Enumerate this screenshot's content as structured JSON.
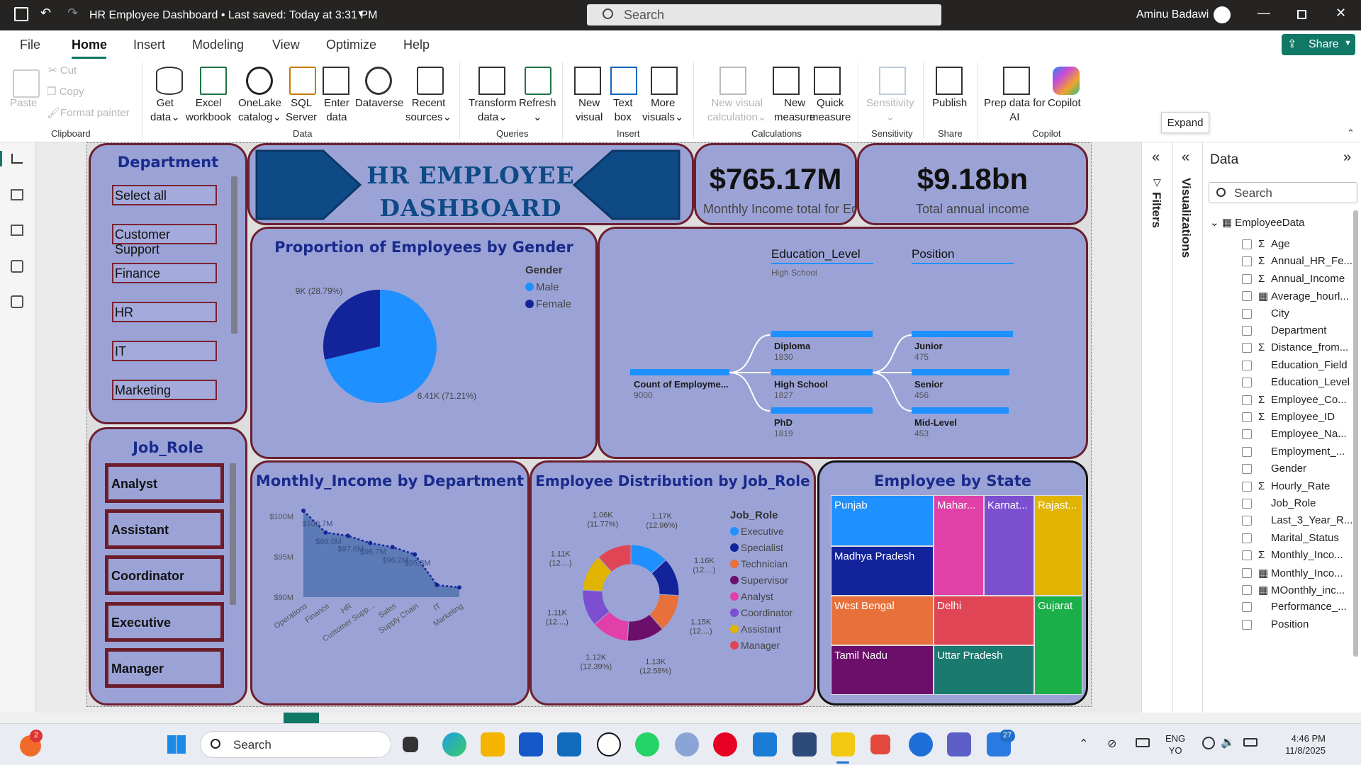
{
  "titlebar": {
    "title": "HR Employee Dashboard • Last saved: Today at 3:31 PM",
    "search_placeholder": "Search",
    "user": "Aminu Badawi"
  },
  "menu": [
    "File",
    "Home",
    "Insert",
    "Modeling",
    "View",
    "Optimize",
    "Help"
  ],
  "share_label": "Share",
  "ribbon": {
    "clipboard": {
      "paste": "Paste",
      "cut": "Cut",
      "copy": "Copy",
      "format_painter": "Format painter",
      "group": "Clipboard"
    },
    "data": {
      "get_data": "Get",
      "get_data2": "data",
      "excel": "Excel",
      "excel2": "workbook",
      "onelake": "OneLake",
      "onelake2": "catalog",
      "sql": "SQL",
      "sql2": "Server",
      "enter": "Enter",
      "enter2": "data",
      "dataverse": "Dataverse",
      "recent": "Recent",
      "recent2": "sources",
      "group": "Data"
    },
    "queries": {
      "transform": "Transform",
      "transform2": "data",
      "refresh": "Refresh",
      "group": "Queries"
    },
    "insert": {
      "new_visual": "New",
      "new_visual2": "visual",
      "text_box": "Text",
      "text_box2": "box",
      "more": "More",
      "more2": "visuals",
      "group": "Insert"
    },
    "calc": {
      "nvc": "New visual",
      "nvc2": "calculation",
      "nm": "New",
      "nm2": "measure",
      "qm": "Quick",
      "qm2": "measure",
      "group": "Calculations"
    },
    "sensitivity": {
      "label": "Sensitivity",
      "group": "Sensitivity"
    },
    "share": {
      "publish": "Publish",
      "group": "Share"
    },
    "copilot": {
      "prep": "Prep data for",
      "prep2": "AI",
      "copilot": "Copilot",
      "group": "Copilot"
    }
  },
  "tooltip": "Expand",
  "dashboard": {
    "title_line1": "HR EMPLOYEE",
    "title_line2": "DASHBOARD",
    "dept_slicer": {
      "title": "Department",
      "items": [
        "Select all",
        "Customer Support",
        "Finance",
        "HR",
        "IT",
        "Marketing"
      ]
    },
    "job_slicer": {
      "title": "Job_Role",
      "items": [
        "Analyst",
        "Assistant",
        "Coordinator",
        "Executive",
        "Manager"
      ]
    },
    "kpi1": {
      "value": "$765.17M",
      "label": "Monthly Income total for Ed..."
    },
    "kpi2": {
      "value": "$9.18bn",
      "label": "Total annual income"
    },
    "decomp": {
      "col1": "Education_Level",
      "col1_sub": "High School",
      "col2": "Position",
      "root": {
        "name": "Count of Employme...",
        "value": "9000"
      },
      "edu": [
        {
          "name": "Diploma",
          "value": "1830"
        },
        {
          "name": "High School",
          "value": "1827"
        },
        {
          "name": "PhD",
          "value": "1819"
        }
      ],
      "pos": [
        {
          "name": "Junior",
          "value": "475"
        },
        {
          "name": "Senior",
          "value": "456"
        },
        {
          "name": "Mid-Level",
          "value": "453"
        }
      ]
    },
    "treemap": {
      "title": "Employee by State",
      "cells": [
        "Punjab",
        "Mahar...",
        "Karnat...",
        "Rajast...",
        "Madhya Pradesh",
        "West Bengal",
        "Delhi",
        "Gujarat",
        "Tamil Nadu",
        "Uttar Pradesh"
      ]
    }
  },
  "chart_data": [
    {
      "type": "pie",
      "title": "Proportion of Employees by Gender",
      "legend_title": "Gender",
      "legend_position": "top-right",
      "series": [
        {
          "name": "Male",
          "value": 6410,
          "label": "6.41K (71.21%)",
          "color": "#1e90ff"
        },
        {
          "name": "Female",
          "value": 2590,
          "label": "2.59K (28.79%)",
          "color": "#13239a"
        }
      ]
    },
    {
      "type": "area",
      "title": "Monthly_Income by Department",
      "ylim": [
        90,
        100
      ],
      "y_ticks": [
        "$90M",
        "$95M",
        "$100M"
      ],
      "categories": [
        "Operations",
        "Finance",
        "HR",
        "Customer Supp...",
        "Sales",
        "Supply Chain",
        "IT",
        "Marketing"
      ],
      "values": [
        100.7,
        98.0,
        97.6,
        96.7,
        96.2,
        95.3,
        91.5,
        91.2
      ],
      "data_labels": [
        "$100.7M",
        "$98.0M",
        "$97.6M",
        "$96.7M",
        "$96.2M",
        "$95.3M",
        "",
        ""
      ]
    },
    {
      "type": "pie",
      "subtype": "donut",
      "title": "Employee Distribution by Job_Role",
      "legend_title": "Job_Role",
      "legend_position": "right",
      "series": [
        {
          "name": "Executive",
          "value": 1170,
          "label": "1.17K (12.96%)",
          "color": "#1e90ff"
        },
        {
          "name": "Specialist",
          "value": 1160,
          "label": "1.16K (12....)",
          "color": "#13239a"
        },
        {
          "name": "Technician",
          "value": 1150,
          "label": "1.15K (12....)",
          "color": "#e8703a"
        },
        {
          "name": "Supervisor",
          "value": 1130,
          "label": "1.13K (12.58%)",
          "color": "#6b0f6b"
        },
        {
          "name": "Analyst",
          "value": 1120,
          "label": "1.12K (12.39%)",
          "color": "#e040a8"
        },
        {
          "name": "Coordinator",
          "value": 1110,
          "label": "1.11K (12....)",
          "color": "#7b4fd0"
        },
        {
          "name": "Assistant",
          "value": 1110,
          "label": "1.11K (12....)",
          "color": "#e0b400"
        },
        {
          "name": "Manager",
          "value": 1060,
          "label": "1.06K (11.77%)",
          "color": "#e04555"
        }
      ]
    }
  ],
  "side": {
    "filters": "Filters",
    "visualizations": "Visualizations",
    "data": "Data",
    "search": "Search",
    "table": "EmployeeData",
    "fields": [
      {
        "n": "Age",
        "s": true
      },
      {
        "n": "Annual_HR_Fe...",
        "s": true
      },
      {
        "n": "Annual_Income",
        "s": true
      },
      {
        "n": "Average_hourl...",
        "c": true
      },
      {
        "n": "City"
      },
      {
        "n": "Department"
      },
      {
        "n": "Distance_from...",
        "s": true
      },
      {
        "n": "Education_Field"
      },
      {
        "n": "Education_Level"
      },
      {
        "n": "Employee_Co...",
        "s": true
      },
      {
        "n": "Employee_ID",
        "s": true
      },
      {
        "n": "Employee_Na..."
      },
      {
        "n": "Employment_..."
      },
      {
        "n": "Gender"
      },
      {
        "n": "Hourly_Rate",
        "s": true
      },
      {
        "n": "Job_Role"
      },
      {
        "n": "Last_3_Year_R..."
      },
      {
        "n": "Marital_Status"
      },
      {
        "n": "Monthly_Inco...",
        "s": true
      },
      {
        "n": "Monthly_Inco...",
        "c": true
      },
      {
        "n": "MOonthly_inc...",
        "c": true
      },
      {
        "n": "Performance_..."
      },
      {
        "n": "Position"
      }
    ]
  },
  "taskbar": {
    "search": "Search",
    "lang1": "ENG",
    "lang2": "YO",
    "time": "4:46 PM",
    "date": "11/8/2025",
    "badge_notif": "2",
    "badge_teams": "27"
  }
}
